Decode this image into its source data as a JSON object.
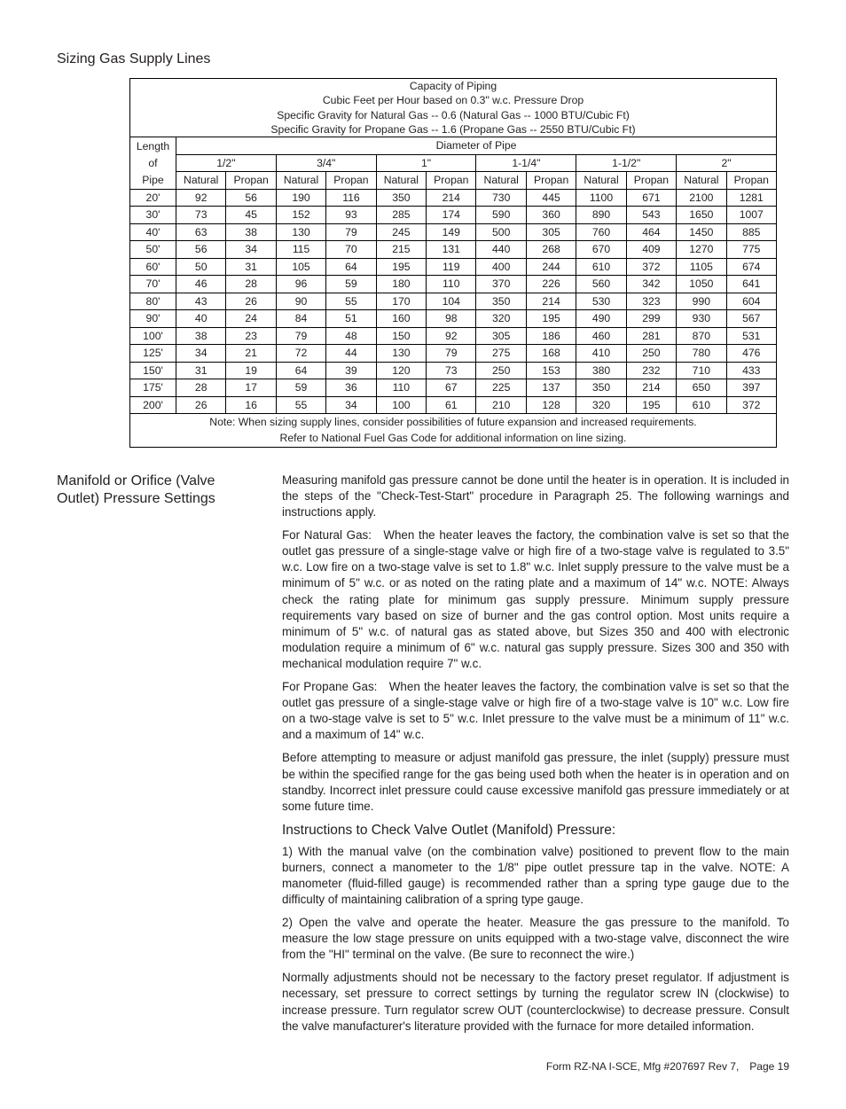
{
  "title_section": "Sizing Gas Supply Lines",
  "table": {
    "header_lines": [
      "Capacity of Piping",
      "Cubic Feet per Hour based on 0.3\" w.c. Pressure Drop",
      "Specific Gravity for Natural Gas -- 0.6 (Natural Gas -- 1000 BTU/Cubic Ft)",
      "Specific Gravity for Propane Gas -- 1.6 (Propane Gas -- 2550 BTU/Cubic Ft)"
    ],
    "length_header": [
      "Length",
      "of",
      "Pipe"
    ],
    "diameter_header": "Diameter of Pipe",
    "diameters": [
      "1/2\"",
      "3/4\"",
      "1\"",
      "1-1/4\"",
      "1-1/2\"",
      "2\""
    ],
    "subheaders": [
      "Natural",
      "Propan"
    ],
    "rows": [
      {
        "len": "20'",
        "v": [
          92,
          56,
          190,
          116,
          350,
          214,
          730,
          445,
          1100,
          671,
          2100,
          1281
        ]
      },
      {
        "len": "30'",
        "v": [
          73,
          45,
          152,
          93,
          285,
          174,
          590,
          360,
          890,
          543,
          1650,
          1007
        ]
      },
      {
        "len": "40'",
        "v": [
          63,
          38,
          130,
          79,
          245,
          149,
          500,
          305,
          760,
          464,
          1450,
          885
        ]
      },
      {
        "len": "50'",
        "v": [
          56,
          34,
          115,
          70,
          215,
          131,
          440,
          268,
          670,
          409,
          1270,
          775
        ]
      },
      {
        "len": "60'",
        "v": [
          50,
          31,
          105,
          64,
          195,
          119,
          400,
          244,
          610,
          372,
          1105,
          674
        ]
      },
      {
        "len": "70'",
        "v": [
          46,
          28,
          96,
          59,
          180,
          110,
          370,
          226,
          560,
          342,
          1050,
          641
        ]
      },
      {
        "len": "80'",
        "v": [
          43,
          26,
          90,
          55,
          170,
          104,
          350,
          214,
          530,
          323,
          990,
          604
        ]
      },
      {
        "len": "90'",
        "v": [
          40,
          24,
          84,
          51,
          160,
          98,
          320,
          195,
          490,
          299,
          930,
          567
        ]
      },
      {
        "len": "100'",
        "v": [
          38,
          23,
          79,
          48,
          150,
          92,
          305,
          186,
          460,
          281,
          870,
          531
        ]
      },
      {
        "len": "125'",
        "v": [
          34,
          21,
          72,
          44,
          130,
          79,
          275,
          168,
          410,
          250,
          780,
          476
        ]
      },
      {
        "len": "150'",
        "v": [
          31,
          19,
          64,
          39,
          120,
          73,
          250,
          153,
          380,
          232,
          710,
          433
        ]
      },
      {
        "len": "175'",
        "v": [
          28,
          17,
          59,
          36,
          110,
          67,
          225,
          137,
          350,
          214,
          650,
          397
        ]
      },
      {
        "len": "200'",
        "v": [
          26,
          16,
          55,
          34,
          100,
          61,
          210,
          128,
          320,
          195,
          610,
          372
        ]
      }
    ],
    "note1": "Note: When sizing supply lines, consider possibilities of future expansion and increased requirements.",
    "note2": "Refer to National Fuel Gas Code for additional information on line sizing."
  },
  "manifold": {
    "heading": "Manifold or Orifice (Valve Outlet) Pressure Settings",
    "p1": "Measuring manifold gas pressure cannot be done until the heater is in operation. It is included in the steps of the \"Check-Test-Start\" procedure in Paragraph 25. The following warnings and instructions apply.",
    "p2": "For Natural Gas: When the heater leaves the factory, the combination valve is set so that the outlet gas pressure of a single-stage valve or high fire of a two-stage valve is regulated to 3.5\" w.c. Low fire on a two-stage valve is set to 1.8\" w.c. Inlet supply pressure to the valve must be a minimum of 5\" w.c. or as noted on the rating plate and a maximum of 14\" w.c. NOTE: Always check the rating plate for minimum gas supply pressure. Minimum supply pressure requirements vary based on size of burner and the gas control option. Most units require a minimum of 5\" w.c. of natural gas as stated above, but Sizes 350 and 400 with electronic modulation require a minimum of 6\" w.c. natural gas supply pressure. Sizes 300 and 350 with mechanical modulation require 7\" w.c.",
    "p3": "For Propane Gas: When the heater leaves the factory, the combination valve is set so that the outlet gas pressure of a single-stage valve or high fire of a two-stage valve is 10\" w.c. Low fire on a two-stage valve is set to 5\" w.c. Inlet pressure to the valve must be a minimum of 11\" w.c. and a maximum of 14\" w.c.",
    "p4": "Before attempting to measure or adjust manifold gas pressure, the inlet (supply) pressure must be within the specified range for the gas being used both when the heater is in operation and on standby. Incorrect inlet pressure could cause excessive manifold gas pressure immediately or at some future time.",
    "subhead": "Instructions to Check Valve Outlet (Manifold) Pressure:",
    "p5": "1) With the manual valve (on the combination valve) positioned to prevent flow to the main burners, connect a manometer to the 1/8\" pipe outlet pressure tap in the valve. NOTE: A manometer (fluid-filled gauge) is recommended rather than a spring type gauge due to the difficulty of maintaining calibration of a spring type gauge.",
    "p6": "2) Open the valve and operate the heater. Measure the gas pressure to the manifold. To measure the low stage pressure on units equipped with a two-stage valve, disconnect the wire from the \"HI\" terminal on the valve. (Be sure to reconnect the wire.)",
    "p7": "Normally adjustments should not be necessary to the factory preset regulator. If adjustment is necessary, set pressure to correct settings by turning the regulator screw IN (clockwise) to increase pressure. Turn regulator screw OUT (counterclockwise) to decrease pressure. Consult the valve manufacturer's literature provided with the furnace for more detailed information."
  },
  "footer": "Form RZ-NA I-SCE, Mfg #207697 Rev 7, Page 19"
}
